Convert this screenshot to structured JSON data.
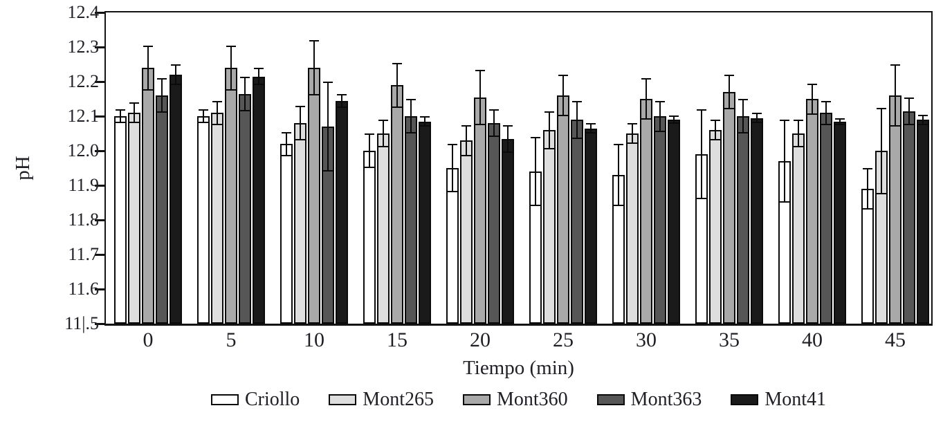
{
  "chart_data": {
    "type": "bar",
    "title": "",
    "xlabel": "Tiempo (min)",
    "ylabel": "pH",
    "categories": [
      0,
      5,
      10,
      15,
      20,
      25,
      30,
      35,
      40,
      45
    ],
    "x_tick_labels": [
      "0",
      "5",
      "10",
      "15",
      "20",
      "25",
      "30",
      "35",
      "40",
      "45"
    ],
    "y_tick_labels": [
      "12.4",
      "12.3",
      "12.2",
      "12.1",
      "12.0",
      "11.9",
      "11.8",
      "11.7",
      "11.6",
      "11|.5"
    ],
    "ylim": [
      11.5,
      12.4
    ],
    "y_tick_step": 0.1,
    "grid": false,
    "error_bars": true,
    "legend_position": "bottom",
    "axis_color": "#121212",
    "series": [
      {
        "name": "Criollo",
        "color": "#ffffff",
        "values": [
          12.1,
          12.1,
          12.02,
          12.0,
          11.95,
          11.94,
          11.93,
          11.99,
          11.97,
          11.89
        ],
        "errors": [
          0.02,
          0.02,
          0.035,
          0.05,
          0.07,
          0.1,
          0.09,
          0.13,
          0.12,
          0.06
        ]
      },
      {
        "name": "Mont265",
        "color": "#dedede",
        "values": [
          12.11,
          12.11,
          12.08,
          12.05,
          12.03,
          12.06,
          12.05,
          12.06,
          12.05,
          12.0
        ],
        "errors": [
          0.03,
          0.035,
          0.05,
          0.04,
          0.045,
          0.055,
          0.03,
          0.03,
          0.04,
          0.125
        ]
      },
      {
        "name": "Mont360",
        "color": "#a9a9a9",
        "values": [
          12.24,
          12.24,
          12.24,
          12.19,
          12.155,
          12.16,
          12.15,
          12.17,
          12.15,
          12.16
        ],
        "errors": [
          0.065,
          0.065,
          0.08,
          0.065,
          0.08,
          0.06,
          0.06,
          0.05,
          0.045,
          0.09
        ]
      },
      {
        "name": "Mont363",
        "color": "#565656",
        "values": [
          12.16,
          12.165,
          12.07,
          12.1,
          12.08,
          12.09,
          12.1,
          12.1,
          12.11,
          12.115
        ],
        "errors": [
          0.05,
          0.05,
          0.13,
          0.05,
          0.04,
          0.055,
          0.045,
          0.05,
          0.035,
          0.04
        ]
      },
      {
        "name": "Mont41",
        "color": "#1a1a1a",
        "values": [
          12.22,
          12.215,
          12.145,
          12.085,
          12.035,
          12.065,
          12.09,
          12.095,
          12.085,
          12.09
        ],
        "errors": [
          0.03,
          0.025,
          0.02,
          0.015,
          0.04,
          0.015,
          0.012,
          0.015,
          0.01,
          0.015
        ]
      }
    ]
  }
}
